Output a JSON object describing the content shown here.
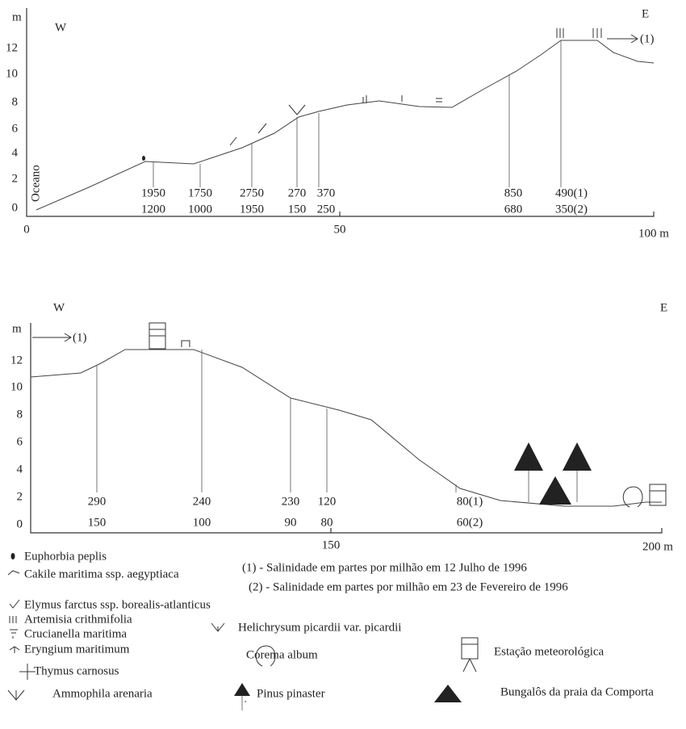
{
  "top_panel": {
    "y_unit": "m",
    "y_ticks": [
      "12",
      "10",
      "8",
      "6",
      "4",
      "2",
      "0"
    ],
    "x_ticks": [
      "0",
      "50",
      "100 m"
    ],
    "west": "W",
    "east": "E",
    "ocean": "Oceano",
    "arrow_label": "(1)",
    "salinity": [
      [
        "1950",
        "1200"
      ],
      [
        "1750",
        "1000"
      ],
      [
        "2750",
        "1950"
      ],
      [
        "270",
        "150"
      ],
      [
        "370",
        "250"
      ],
      [
        "850",
        "680"
      ],
      [
        "490(1)",
        "350(2)"
      ]
    ]
  },
  "bottom_panel": {
    "y_unit": "m",
    "y_ticks": [
      "12",
      "10",
      "8",
      "6",
      "4",
      "2",
      "0"
    ],
    "x_ticks": [
      "150",
      "200 m"
    ],
    "west": "W",
    "east": "E",
    "arrow_label": "(1)",
    "salinity": [
      [
        "290",
        "150"
      ],
      [
        "240",
        "100"
      ],
      [
        "230",
        "90"
      ],
      [
        "120",
        "80"
      ],
      [
        "80(1)",
        "60(2)"
      ]
    ]
  },
  "notes": [
    "(1) - Salinidade em partes por milhão em 12 Julho de 1996",
    "(2) - Salinidade em partes por milhão em 23 de Fevereiro de 1996"
  ],
  "legend": [
    "Euphorbia peplis",
    "Cakile maritima ssp. aegyptiaca",
    "Elymus farctus ssp. borealis-atlanticus",
    "Artemisia crithmifolia",
    "Crucianella maritima",
    "Helichrysum picardii var. picardii",
    "Eryngium maritimum",
    "Corema album",
    "Estação meteorológica",
    "Thymus carnosus",
    "Ammophila arenaria",
    "Pinus pinaster",
    "Bungalôs da praia da Comporta"
  ]
}
